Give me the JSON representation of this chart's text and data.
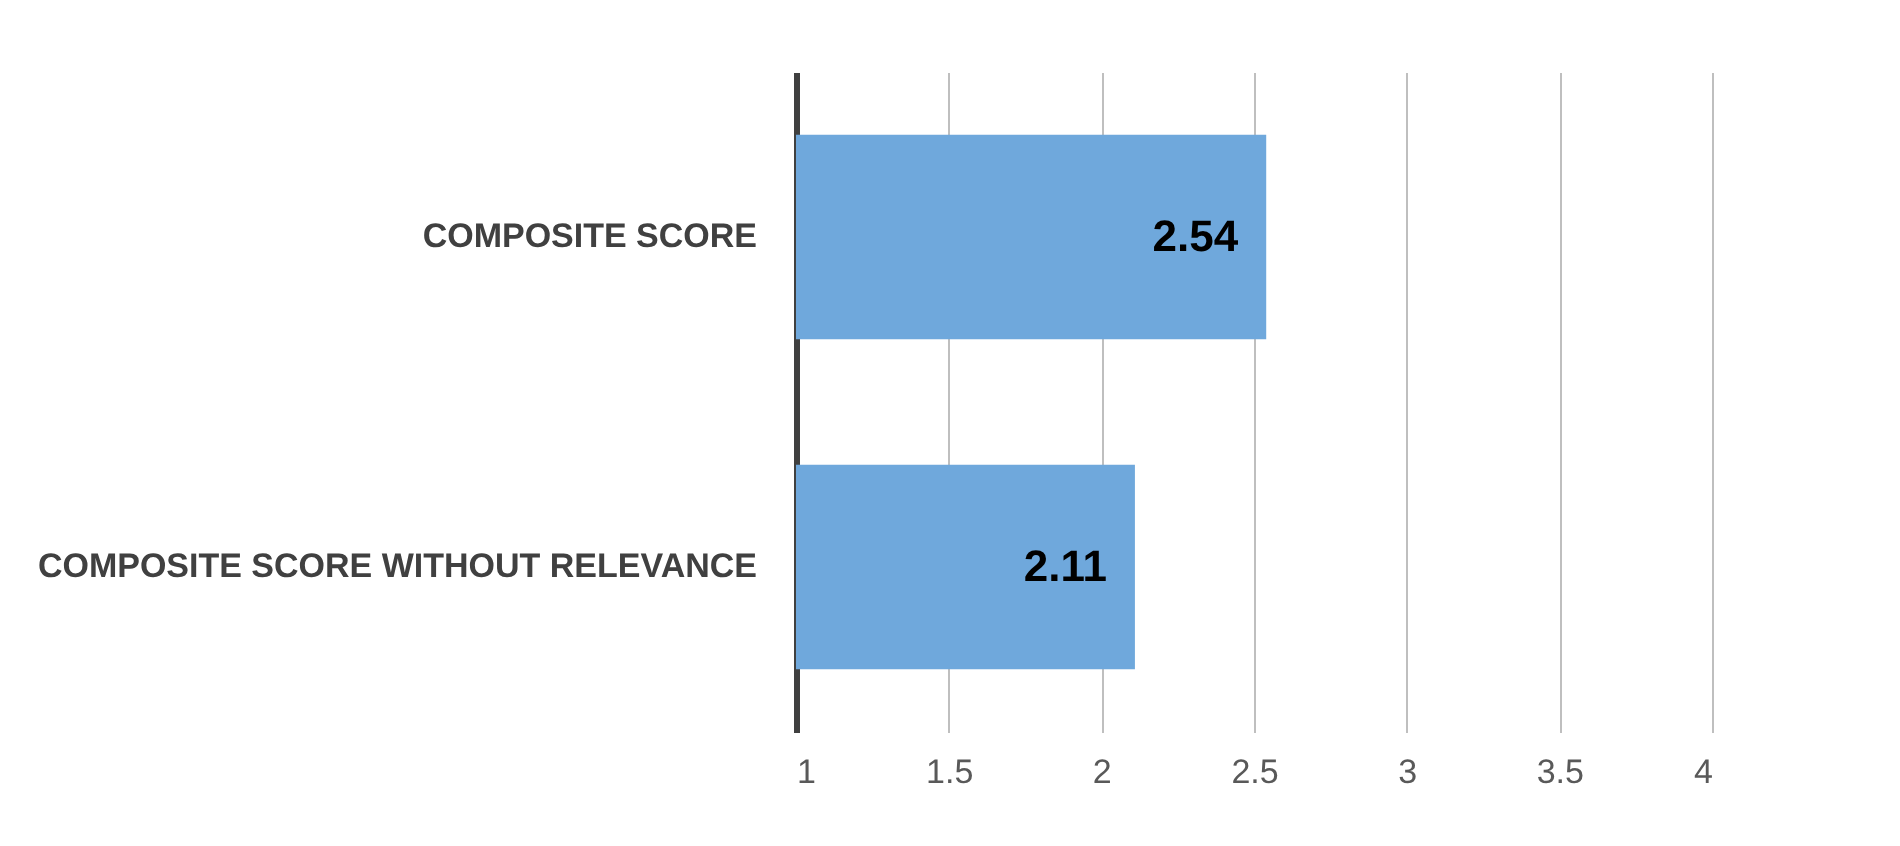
{
  "chart_data": {
    "type": "bar",
    "orientation": "horizontal",
    "categories": [
      "COMPOSITE SCORE",
      "COMPOSITE SCORE WITHOUT RELEVANCE"
    ],
    "values": [
      2.54,
      2.11
    ],
    "color": "#6fa8dc",
    "xlim": [
      1,
      4
    ],
    "xticks": [
      1,
      1.5,
      2,
      2.5,
      3,
      3.5,
      4
    ],
    "grid": "x",
    "data_labels": true
  }
}
